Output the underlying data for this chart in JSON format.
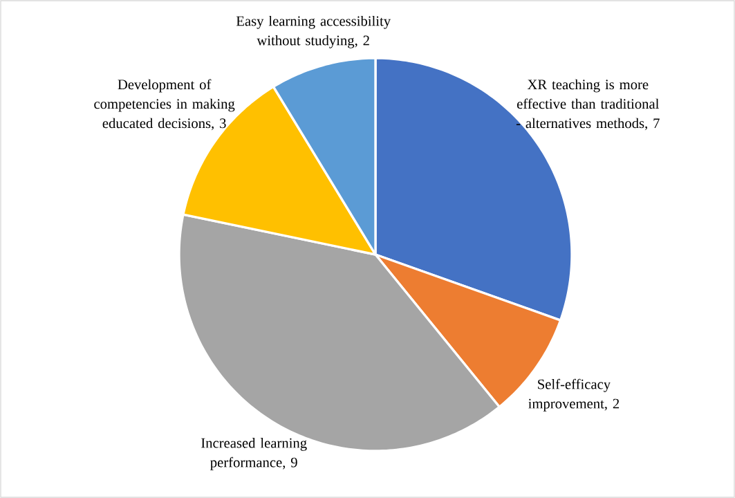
{
  "chart_data": {
    "type": "pie",
    "categories": [
      "XR teaching is more effective than traditional - alternatives methods",
      "Self-efficacy improvement",
      "Increased learning performance",
      "Development of competencies in making educated decisions",
      "Easy learning accessibility without studying"
    ],
    "values": [
      7,
      2,
      9,
      3,
      2
    ],
    "value_labels": [
      ", 7",
      ", 2",
      ", 9",
      ", 3",
      ", 2"
    ],
    "colors": [
      "#4472c4",
      "#ed7d31",
      "#a5a5a5",
      "#ffc000",
      "#5b9bd5"
    ]
  }
}
